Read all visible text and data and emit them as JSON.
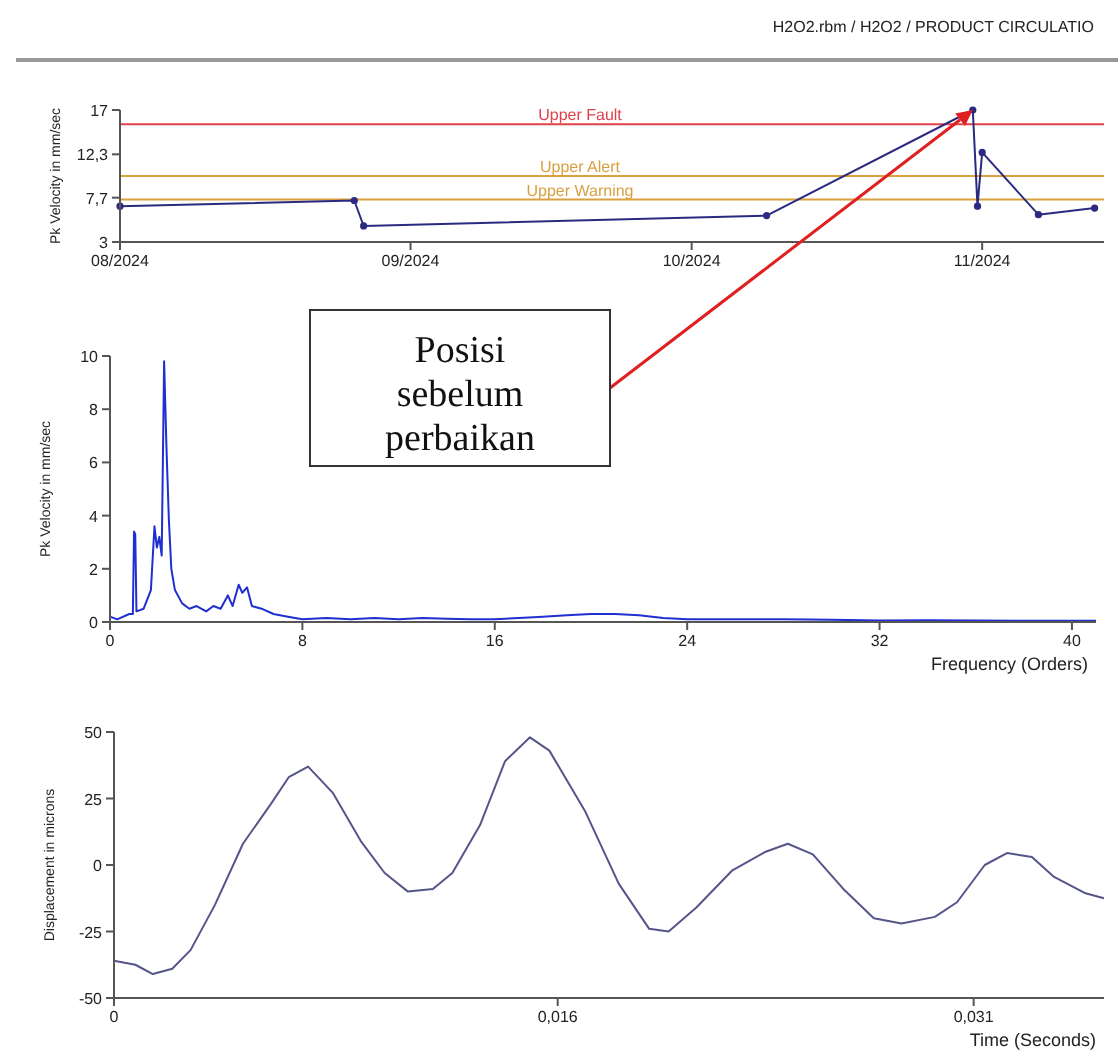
{
  "chart_data": [
    {
      "type": "line",
      "title": "H2O2.rbm / H2O2 / PRODUCT CIRCULATIO",
      "ylabel": "Pk Velocity in mm/sec",
      "marker": "circle",
      "grid": false,
      "x": [
        "2024-08-01",
        "2024-08-26",
        "2024-08-27",
        "2024-10-09",
        "2024-10-31",
        "2024-10-31T12:00",
        "2024-11-01",
        "2024-11-07",
        "2024-11-13"
      ],
      "series": [
        {
          "color": "#2a2a80",
          "values": [
            6.8,
            7.4,
            4.7,
            5.8,
            17,
            6.8,
            12.5,
            5.9,
            6.6
          ]
        }
      ],
      "xlim": [
        "2024-08-01",
        "2024-11-14"
      ],
      "xticks": [
        {
          "value": "2024-08-01",
          "label": "08/2024"
        },
        {
          "value": "2024-09-01",
          "label": "09/2024"
        },
        {
          "value": "2024-10-01",
          "label": "10/2024"
        },
        {
          "value": "2024-11-01",
          "label": "11/2024"
        }
      ],
      "ylim": [
        3,
        17
      ],
      "yticks": [
        3,
        {
          "value": 7.7,
          "label": "7,7"
        },
        {
          "value": 12.3,
          "label": "12,3"
        },
        17
      ],
      "ref_lines": [
        {
          "axis": "y",
          "value": 15.5,
          "label": "Upper Fault",
          "color": "#e0404a"
        },
        {
          "axis": "y",
          "value": 10,
          "label": "Upper Alert",
          "color": "#d9a040"
        },
        {
          "axis": "y",
          "value": 7.5,
          "label": "Upper Warning",
          "color": "#d9a040"
        }
      ],
      "annotations": [
        "Posisi sebelum perbaikan"
      ]
    },
    {
      "type": "line",
      "xlabel": "Frequency (Orders)",
      "ylabel": "Pk Velocity in mm/sec",
      "grid": false,
      "x": [
        0,
        0.3,
        0.8,
        0.95,
        1.0,
        1.05,
        1.1,
        1.4,
        1.7,
        1.85,
        1.95,
        2.05,
        2.15,
        2.25,
        2.35,
        2.45,
        2.55,
        2.7,
        3.0,
        3.3,
        3.6,
        4.0,
        4.3,
        4.6,
        4.9,
        5.1,
        5.35,
        5.5,
        5.7,
        5.9,
        6.3,
        6.8,
        7.4,
        8,
        9,
        10,
        11,
        12,
        13,
        14,
        15,
        16,
        17,
        18,
        19,
        20,
        21,
        22,
        23,
        24,
        26,
        28,
        30,
        32,
        34,
        36,
        38,
        40,
        41
      ],
      "series": [
        {
          "color": "#1f2fd0",
          "values": [
            0.2,
            0.1,
            0.3,
            0.3,
            3.4,
            3.3,
            0.4,
            0.5,
            1.2,
            3.6,
            2.8,
            3.2,
            2.5,
            9.8,
            6.5,
            3.8,
            2.0,
            1.2,
            0.7,
            0.5,
            0.6,
            0.4,
            0.6,
            0.5,
            1.0,
            0.6,
            1.4,
            1.1,
            1.3,
            0.6,
            0.5,
            0.3,
            0.2,
            0.1,
            0.15,
            0.1,
            0.15,
            0.1,
            0.15,
            0.12,
            0.1,
            0.1,
            0.15,
            0.2,
            0.25,
            0.3,
            0.3,
            0.25,
            0.15,
            0.1,
            0.1,
            0.1,
            0.08,
            0.06,
            0.07,
            0.06,
            0.05,
            0.05,
            0.05
          ]
        }
      ],
      "xlim": [
        0,
        41
      ],
      "xticks": [
        0,
        8,
        16,
        24,
        32,
        40
      ],
      "ylim": [
        0,
        10
      ],
      "yticks": [
        0,
        2,
        4,
        6,
        8,
        10
      ]
    },
    {
      "type": "line",
      "xlabel": "Time (Seconds)",
      "ylabel": "Displacement in microns",
      "grid": false,
      "x": [
        0,
        0.00077,
        0.0014,
        0.0021,
        0.00276,
        0.00364,
        0.00465,
        0.00566,
        0.0063,
        0.007,
        0.0079,
        0.0089,
        0.00976,
        0.0106,
        0.0115,
        0.0122,
        0.0132,
        0.0141,
        0.015,
        0.0157,
        0.017,
        0.0182,
        0.0193,
        0.02,
        0.021,
        0.0223,
        0.0235,
        0.0243,
        0.0252,
        0.0263,
        0.0274,
        0.0284,
        0.0296,
        0.0304,
        0.0314,
        0.0322,
        0.0331,
        0.0339,
        0.035,
        0.0357
      ],
      "series": [
        {
          "color": "#55558a",
          "values": [
            -36,
            -37.5,
            -41,
            -39,
            -32,
            -15,
            8,
            23,
            33,
            37,
            27,
            9,
            -3,
            -10,
            -9,
            -3,
            15,
            39,
            48,
            43,
            20,
            -7,
            -24,
            -25,
            -16,
            -2,
            5,
            8,
            4,
            -9,
            -20,
            -22,
            -19.5,
            -14,
            0,
            4.5,
            3,
            -4.5,
            -10.5,
            -12.5
          ]
        }
      ],
      "xlim": [
        0,
        0.0357
      ],
      "xticks": [
        0,
        {
          "value": 0.016,
          "label": "0,016"
        },
        {
          "value": 0.031,
          "label": "0,031"
        }
      ],
      "ylim": [
        -50,
        50
      ],
      "yticks": [
        50,
        25,
        0,
        -25,
        -50
      ]
    }
  ]
}
